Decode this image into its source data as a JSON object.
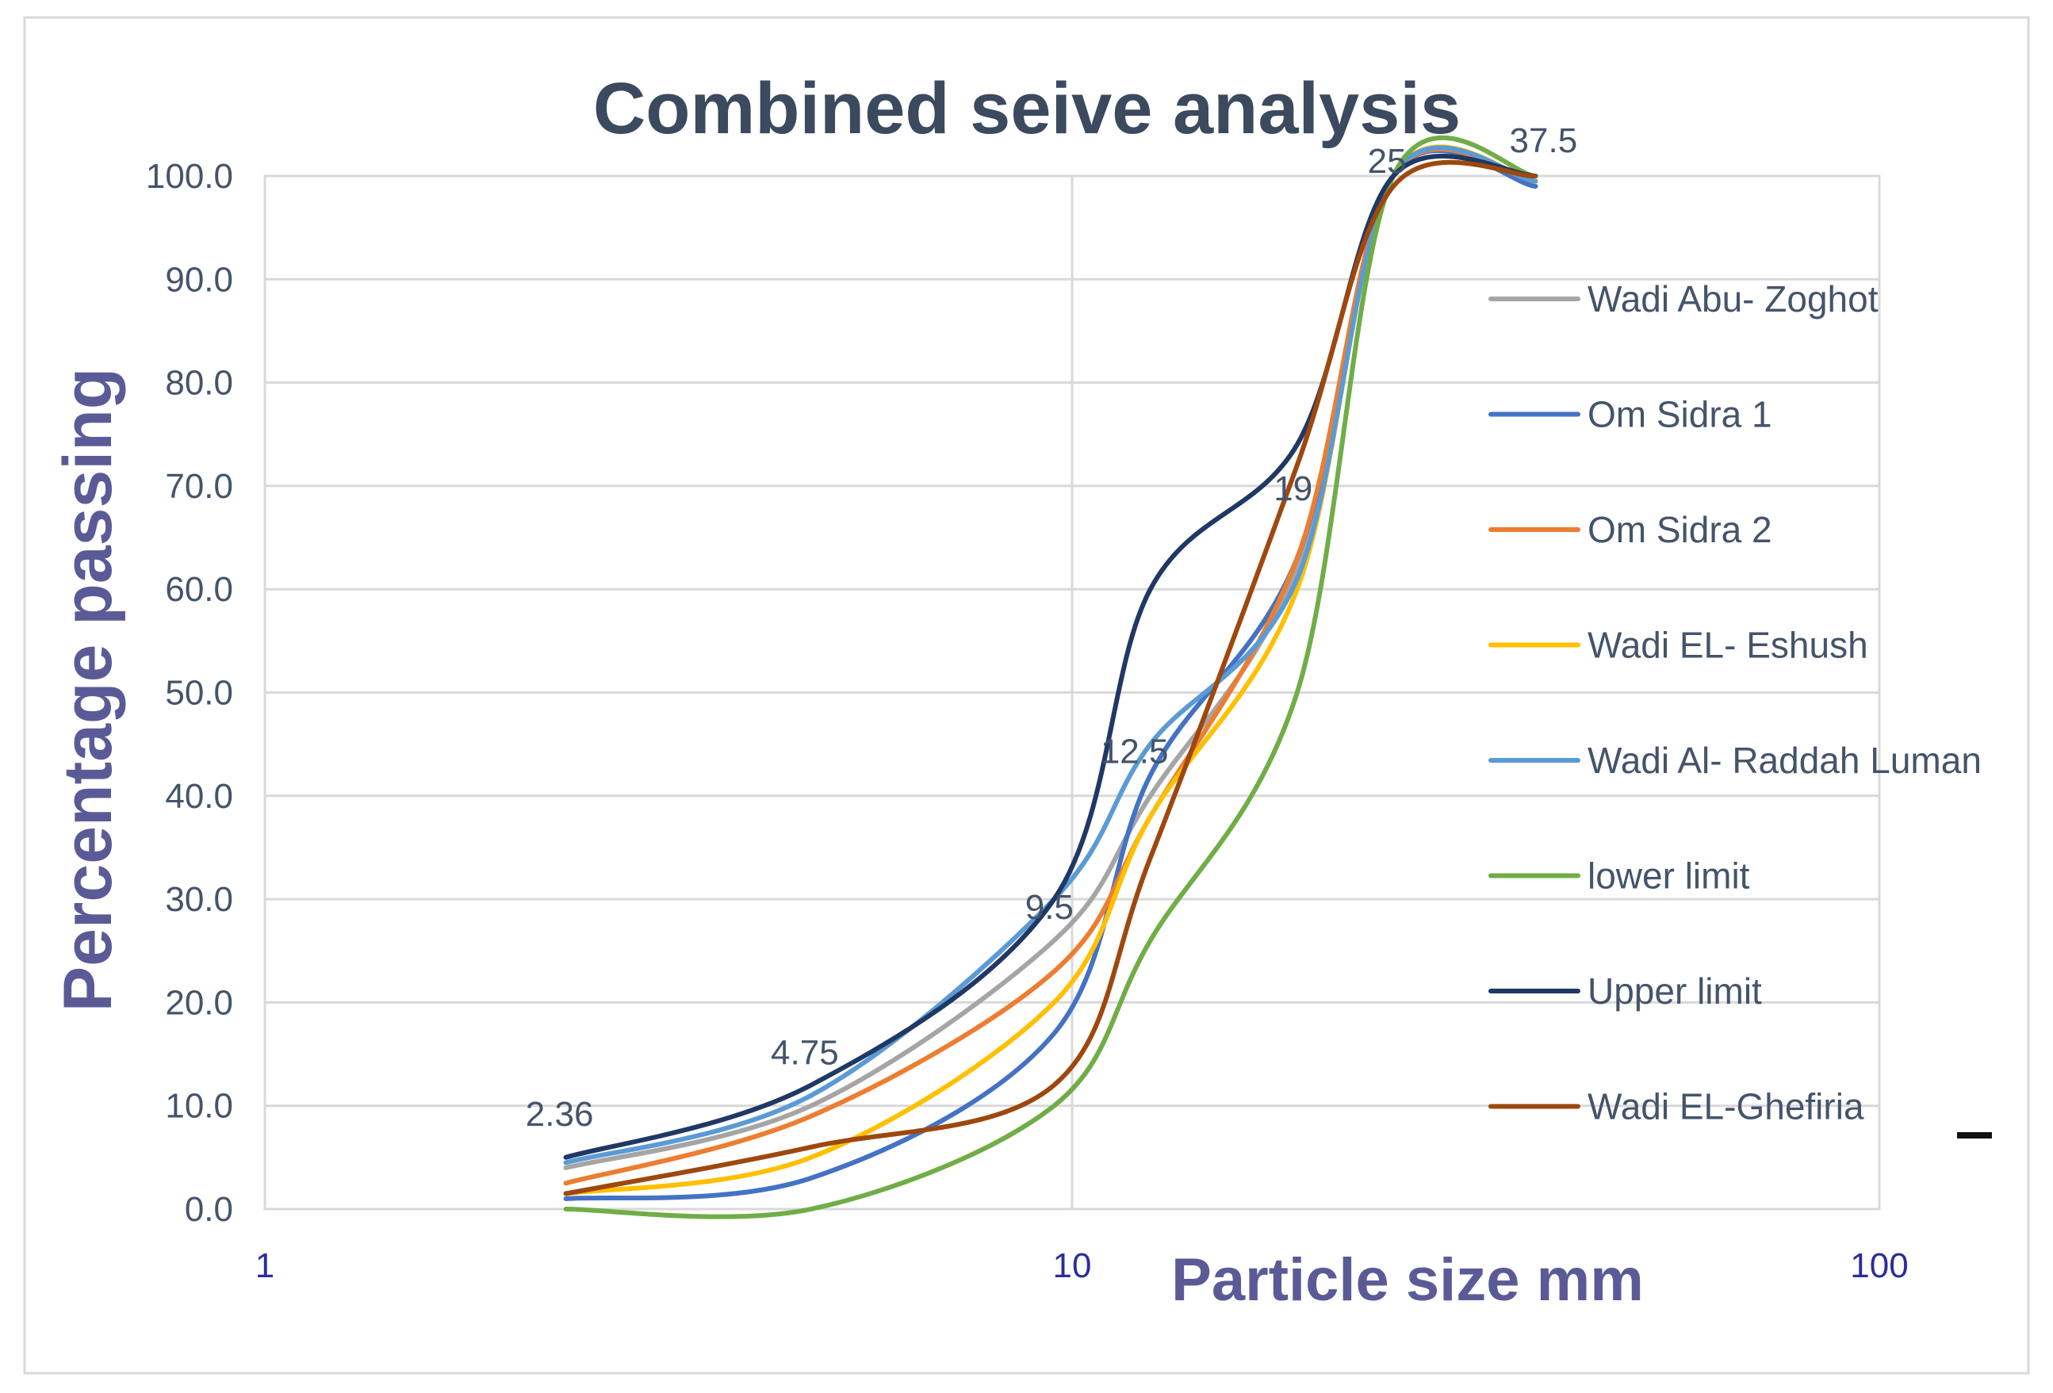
{
  "chart_data": {
    "type": "line",
    "title": "Combined seive analysis",
    "xlabel": "Particle size mm",
    "ylabel": "Percentage passing",
    "x_scale": "log",
    "xlim": [
      1,
      100
    ],
    "ylim": [
      0,
      100
    ],
    "x_ticks": [
      1,
      10,
      100
    ],
    "x_tick_labels": [
      "1",
      "10",
      "100"
    ],
    "y_ticks": [
      0,
      10,
      20,
      30,
      40,
      50,
      60,
      70,
      80,
      90,
      100
    ],
    "y_tick_labels": [
      "0.0",
      "10.0",
      "20.0",
      "30.0",
      "40.0",
      "50.0",
      "60.0",
      "70.0",
      "80.0",
      "90.0",
      "100.0"
    ],
    "grid": true,
    "legend_position": "right",
    "x": [
      2.36,
      4.75,
      9.5,
      12.5,
      19,
      25,
      37.5
    ],
    "point_labels": [
      {
        "text": "2.36",
        "x": 2.36,
        "y": 5
      },
      {
        "text": "4.75",
        "x": 4.75,
        "y": 10
      },
      {
        "text": "9.5",
        "x": 9.5,
        "y": 30
      },
      {
        "text": "12.5",
        "x": 12.5,
        "y": 42
      },
      {
        "text": "19",
        "x": 19,
        "y": 70
      },
      {
        "text": "25",
        "x": 25,
        "y": 100
      },
      {
        "text": "37.5",
        "x": 37.5,
        "y": 100
      }
    ],
    "series": [
      {
        "name": "Wadi Abu- Zoghot",
        "color": "#a5a5a5",
        "values": [
          4,
          10,
          26,
          40,
          62,
          100,
          99
        ]
      },
      {
        "name": "Om Sidra 1",
        "color": "#4472c4",
        "values": [
          1,
          3,
          17,
          42,
          63,
          100,
          99
        ]
      },
      {
        "name": "Om Sidra  2",
        "color": "#ed7d31",
        "values": [
          2.5,
          9,
          23,
          38,
          63,
          100,
          99.5
        ]
      },
      {
        "name": "Wadi EL- Eshush",
        "color": "#ffc000",
        "values": [
          1.5,
          5,
          20,
          38,
          60,
          100,
          99.5
        ]
      },
      {
        "name": "Wadi Al- Raddah Luman",
        "color": "#5b9bd5",
        "values": [
          4.5,
          11,
          30,
          45,
          61,
          100,
          99.5
        ]
      },
      {
        "name": "lower limit",
        "color": "#70ad47",
        "values": [
          0,
          0,
          10,
          26,
          50,
          100,
          100
        ]
      },
      {
        "name": "Upper limit",
        "color": "#203864",
        "values": [
          5,
          12,
          30,
          60,
          74,
          100,
          100
        ]
      },
      {
        "name": "Wadi EL-Ghefiria",
        "color": "#9e480e",
        "values": [
          1.5,
          6,
          12,
          34,
          72,
          99,
          100
        ]
      }
    ]
  }
}
